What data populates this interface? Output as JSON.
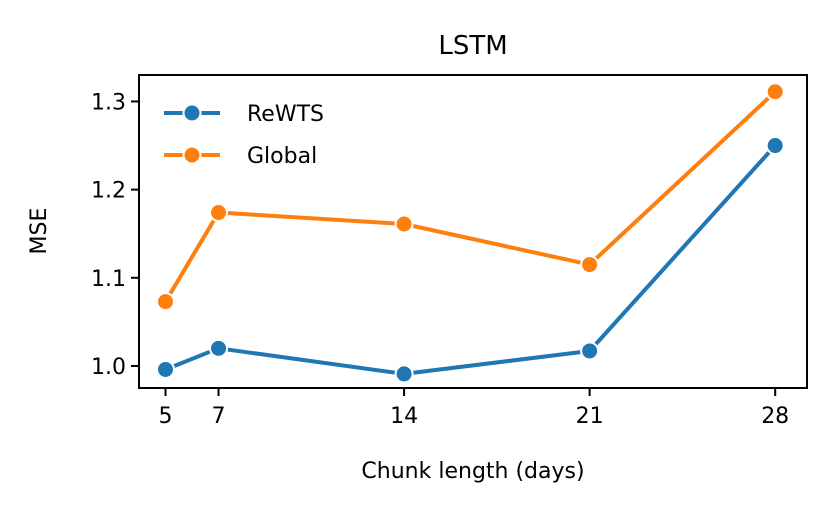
{
  "chart_data": {
    "type": "line",
    "title": "LSTM",
    "xlabel": "Chunk length (days)",
    "ylabel": "MSE",
    "x": [
      5,
      7,
      14,
      21,
      28
    ],
    "xticks": [
      5,
      7,
      14,
      21,
      28
    ],
    "xtick_labels": [
      "5",
      "7",
      "14",
      "21",
      "28"
    ],
    "xlim": [
      4.0,
      29.2
    ],
    "yticks": [
      1.0,
      1.1,
      1.2,
      1.3
    ],
    "ytick_labels": [
      "1.0",
      "1.1",
      "1.2",
      "1.3"
    ],
    "ylim": [
      0.975,
      1.33
    ],
    "grid": false,
    "legend_position": "top-left",
    "series": [
      {
        "name": "ReWTS",
        "color": "#1f77b4",
        "marker": "circle",
        "values": [
          0.996,
          1.02,
          0.991,
          1.017,
          1.25
        ]
      },
      {
        "name": "Global",
        "color": "#ff7f0e",
        "marker": "circle",
        "values": [
          1.073,
          1.174,
          1.161,
          1.115,
          1.311
        ]
      }
    ]
  }
}
